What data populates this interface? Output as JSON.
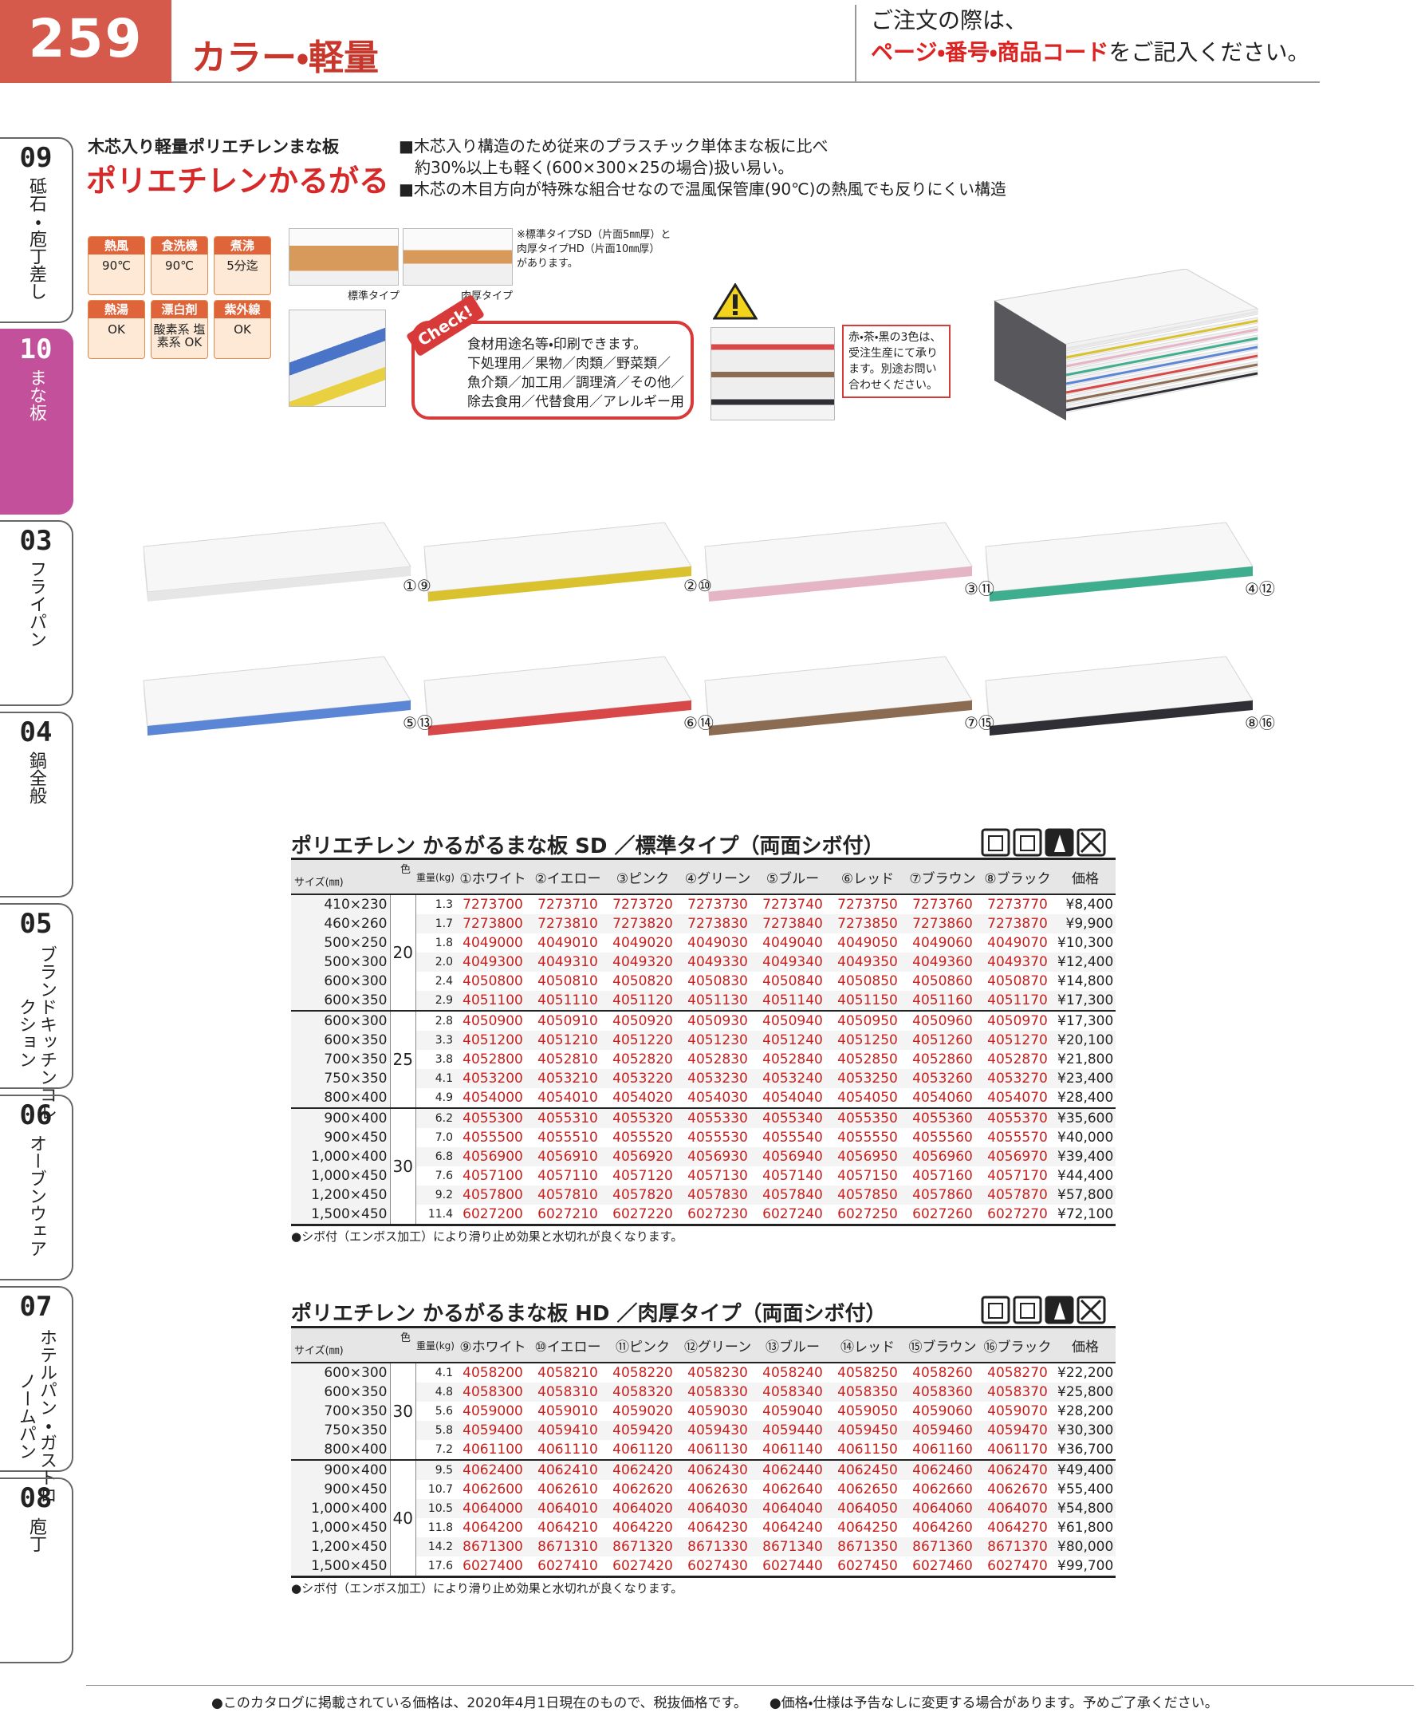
{
  "header": {
    "page_number": "259",
    "title": "カラー・軽量",
    "notice_line1": "ご注文の際は、",
    "notice_red": "ページ・番号・商品コード",
    "notice_rest": "をご記入ください。"
  },
  "side_tabs": [
    {
      "number": "09",
      "label": "砥石・庖丁差し",
      "active": false
    },
    {
      "number": "10",
      "label": "まな板",
      "active": true
    },
    {
      "number": "03",
      "label": "フライパン",
      "active": false
    },
    {
      "number": "04",
      "label": "鍋全般",
      "active": false
    },
    {
      "number": "05",
      "label": "ブランドキッチンコレクション",
      "active": false
    },
    {
      "number": "06",
      "label": "オーブンウェア",
      "active": false
    },
    {
      "number": "07",
      "label": "ホテルパン・ガストロノームパン",
      "active": false
    },
    {
      "number": "08",
      "label": "庖丁",
      "active": false
    }
  ],
  "product": {
    "subtitle": "木芯入り軽量ポリエチレンまな板",
    "name": "ポリエチレンかるがる",
    "features": [
      "■木芯入り構造のため従来のプラスチック単体まな板に比べ",
      "　約30%以上も軽く(600×300×25の場合)扱い易い。",
      "■木芯の木目方向が特殊な組合せなので温風保管庫(90℃)の熱風でも反りにくい構造"
    ],
    "badges": [
      {
        "label": "熱風",
        "value": "90℃"
      },
      {
        "label": "食洗機",
        "value": "90℃"
      },
      {
        "label": "煮沸",
        "value": "5分迄"
      },
      {
        "label": "熱湯",
        "value": "OK"
      },
      {
        "label": "漂白剤",
        "value": "酸素系 塩素系 OK"
      },
      {
        "label": "紫外線",
        "value": "OK"
      }
    ],
    "image_captions": [
      "標準タイプ",
      "肉厚タイプ"
    ],
    "type_note": [
      "※標準タイプSD（片面5㎜厚）と",
      "肉厚タイプHD（片面10㎜厚）",
      "があります。"
    ],
    "check_tag": "Check!",
    "check_lines": [
      "食材用途名等・印刷できます。",
      "下処理用／果物／肉類／野菜類／",
      "魚介類／加工用／調理済／その他／",
      "除去食用／代替食用／アレルギー用"
    ],
    "order_note": [
      "赤・茶・黒の3色は、",
      "受注生産にて承り",
      "ます。別途お問い",
      "合わせください。"
    ]
  },
  "boards": [
    {
      "label": "①⑨",
      "color": "#e6e6e6"
    },
    {
      "label": "②⑩",
      "color": "#d9c22e"
    },
    {
      "label": "③⑪",
      "color": "#e5b5c5"
    },
    {
      "label": "④⑫",
      "color": "#3fae8e"
    },
    {
      "label": "⑤⑬",
      "color": "#5b86d6"
    },
    {
      "label": "⑥⑭",
      "color": "#d84848"
    },
    {
      "label": "⑦⑮",
      "color": "#8b6b52"
    },
    {
      "label": "⑧⑯",
      "color": "#2f2f35"
    }
  ],
  "tables": [
    {
      "title": "ポリエチレン かるがるまな板 SD ／標準タイプ（両面シボ付）",
      "color_label": "色",
      "size_label": "サイズ(㎜)",
      "weight_label": "重量(kg)",
      "price_label": "価格",
      "columns": [
        "①ホワイト",
        "②イエロー",
        "③ピンク",
        "④グリーン",
        "⑤ブルー",
        "⑥レッド",
        "⑦ブラウン",
        "⑧ブラック"
      ],
      "groups": [
        {
          "thickness": "20",
          "rows": [
            {
              "size": "410×230",
              "weight": "1.3",
              "codes": [
                "7273700",
                "7273710",
                "7273720",
                "7273730",
                "7273740",
                "7273750",
                "7273760",
                "7273770"
              ],
              "price": "¥8,400"
            },
            {
              "size": "460×260",
              "weight": "1.7",
              "codes": [
                "7273800",
                "7273810",
                "7273820",
                "7273830",
                "7273840",
                "7273850",
                "7273860",
                "7273870"
              ],
              "price": "¥9,900"
            },
            {
              "size": "500×250",
              "weight": "1.8",
              "codes": [
                "4049000",
                "4049010",
                "4049020",
                "4049030",
                "4049040",
                "4049050",
                "4049060",
                "4049070"
              ],
              "price": "¥10,300"
            },
            {
              "size": "500×300",
              "weight": "2.0",
              "codes": [
                "4049300",
                "4049310",
                "4049320",
                "4049330",
                "4049340",
                "4049350",
                "4049360",
                "4049370"
              ],
              "price": "¥12,400"
            },
            {
              "size": "600×300",
              "weight": "2.4",
              "codes": [
                "4050800",
                "4050810",
                "4050820",
                "4050830",
                "4050840",
                "4050850",
                "4050860",
                "4050870"
              ],
              "price": "¥14,800"
            },
            {
              "size": "600×350",
              "weight": "2.9",
              "codes": [
                "4051100",
                "4051110",
                "4051120",
                "4051130",
                "4051140",
                "4051150",
                "4051160",
                "4051170"
              ],
              "price": "¥17,300"
            }
          ]
        },
        {
          "thickness": "25",
          "rows": [
            {
              "size": "600×300",
              "weight": "2.8",
              "codes": [
                "4050900",
                "4050910",
                "4050920",
                "4050930",
                "4050940",
                "4050950",
                "4050960",
                "4050970"
              ],
              "price": "¥17,300"
            },
            {
              "size": "600×350",
              "weight": "3.3",
              "codes": [
                "4051200",
                "4051210",
                "4051220",
                "4051230",
                "4051240",
                "4051250",
                "4051260",
                "4051270"
              ],
              "price": "¥20,100"
            },
            {
              "size": "700×350",
              "weight": "3.8",
              "codes": [
                "4052800",
                "4052810",
                "4052820",
                "4052830",
                "4052840",
                "4052850",
                "4052860",
                "4052870"
              ],
              "price": "¥21,800"
            },
            {
              "size": "750×350",
              "weight": "4.1",
              "codes": [
                "4053200",
                "4053210",
                "4053220",
                "4053230",
                "4053240",
                "4053250",
                "4053260",
                "4053270"
              ],
              "price": "¥23,400"
            },
            {
              "size": "800×400",
              "weight": "4.9",
              "codes": [
                "4054000",
                "4054010",
                "4054020",
                "4054030",
                "4054040",
                "4054050",
                "4054060",
                "4054070"
              ],
              "price": "¥28,400"
            }
          ]
        },
        {
          "thickness": "30",
          "rows": [
            {
              "size": "900×400",
              "weight": "6.2",
              "codes": [
                "4055300",
                "4055310",
                "4055320",
                "4055330",
                "4055340",
                "4055350",
                "4055360",
                "4055370"
              ],
              "price": "¥35,600"
            },
            {
              "size": "900×450",
              "weight": "7.0",
              "codes": [
                "4055500",
                "4055510",
                "4055520",
                "4055530",
                "4055540",
                "4055550",
                "4055560",
                "4055570"
              ],
              "price": "¥40,000"
            },
            {
              "size": "1,000×400",
              "weight": "6.8",
              "codes": [
                "4056900",
                "4056910",
                "4056920",
                "4056930",
                "4056940",
                "4056950",
                "4056960",
                "4056970"
              ],
              "price": "¥39,400"
            },
            {
              "size": "1,000×450",
              "weight": "7.6",
              "codes": [
                "4057100",
                "4057110",
                "4057120",
                "4057130",
                "4057140",
                "4057150",
                "4057160",
                "4057170"
              ],
              "price": "¥44,400"
            },
            {
              "size": "1,200×450",
              "weight": "9.2",
              "codes": [
                "4057800",
                "4057810",
                "4057820",
                "4057830",
                "4057840",
                "4057850",
                "4057860",
                "4057870"
              ],
              "price": "¥57,800"
            },
            {
              "size": "1,500×450",
              "weight": "11.4",
              "codes": [
                "6027200",
                "6027210",
                "6027220",
                "6027230",
                "6027240",
                "6027250",
                "6027260",
                "6027270"
              ],
              "price": "¥72,100"
            }
          ]
        }
      ],
      "note": "●シボ付（エンボス加工）により滑り止め効果と水切れが良くなります。"
    },
    {
      "title": "ポリエチレン かるがるまな板 HD ／肉厚タイプ（両面シボ付）",
      "color_label": "色",
      "size_label": "サイズ(㎜)",
      "weight_label": "重量(kg)",
      "price_label": "価格",
      "columns": [
        "⑨ホワイト",
        "⑩イエロー",
        "⑪ピンク",
        "⑫グリーン",
        "⑬ブルー",
        "⑭レッド",
        "⑮ブラウン",
        "⑯ブラック"
      ],
      "groups": [
        {
          "thickness": "30",
          "rows": [
            {
              "size": "600×300",
              "weight": "4.1",
              "codes": [
                "4058200",
                "4058210",
                "4058220",
                "4058230",
                "4058240",
                "4058250",
                "4058260",
                "4058270"
              ],
              "price": "¥22,200"
            },
            {
              "size": "600×350",
              "weight": "4.8",
              "codes": [
                "4058300",
                "4058310",
                "4058320",
                "4058330",
                "4058340",
                "4058350",
                "4058360",
                "4058370"
              ],
              "price": "¥25,800"
            },
            {
              "size": "700×350",
              "weight": "5.6",
              "codes": [
                "4059000",
                "4059010",
                "4059020",
                "4059030",
                "4059040",
                "4059050",
                "4059060",
                "4059070"
              ],
              "price": "¥28,200"
            },
            {
              "size": "750×350",
              "weight": "5.8",
              "codes": [
                "4059400",
                "4059410",
                "4059420",
                "4059430",
                "4059440",
                "4059450",
                "4059460",
                "4059470"
              ],
              "price": "¥30,300"
            },
            {
              "size": "800×400",
              "weight": "7.2",
              "codes": [
                "4061100",
                "4061110",
                "4061120",
                "4061130",
                "4061140",
                "4061150",
                "4061160",
                "4061170"
              ],
              "price": "¥36,700"
            }
          ]
        },
        {
          "thickness": "40",
          "rows": [
            {
              "size": "900×400",
              "weight": "9.5",
              "codes": [
                "4062400",
                "4062410",
                "4062420",
                "4062430",
                "4062440",
                "4062450",
                "4062460",
                "4062470"
              ],
              "price": "¥49,400"
            },
            {
              "size": "900×450",
              "weight": "10.7",
              "codes": [
                "4062600",
                "4062610",
                "4062620",
                "4062630",
                "4062640",
                "4062650",
                "4062660",
                "4062670"
              ],
              "price": "¥55,400"
            },
            {
              "size": "1,000×400",
              "weight": "10.5",
              "codes": [
                "4064000",
                "4064010",
                "4064020",
                "4064030",
                "4064040",
                "4064050",
                "4064060",
                "4064070"
              ],
              "price": "¥54,800"
            },
            {
              "size": "1,000×450",
              "weight": "11.8",
              "codes": [
                "4064200",
                "4064210",
                "4064220",
                "4064230",
                "4064240",
                "4064250",
                "4064260",
                "4064270"
              ],
              "price": "¥61,800"
            },
            {
              "size": "1,200×450",
              "weight": "14.2",
              "codes": [
                "8671300",
                "8671310",
                "8671320",
                "8671330",
                "8671340",
                "8671350",
                "8671360",
                "8671370"
              ],
              "price": "¥80,000"
            },
            {
              "size": "1,500×450",
              "weight": "17.6",
              "codes": [
                "6027400",
                "6027410",
                "6027420",
                "6027430",
                "6027440",
                "6027450",
                "6027460",
                "6027470"
              ],
              "price": "¥99,700"
            }
          ]
        }
      ],
      "note": "●シボ付（エンボス加工）により滑り止め効果と水切れが良くなります。"
    }
  ],
  "footer": [
    "●このカタログに掲載されている価格は、2020年4月1日現在のもので、税抜価格です。",
    "●価格・仕様は予告なしに変更する場合があります。予めご了承ください。"
  ]
}
